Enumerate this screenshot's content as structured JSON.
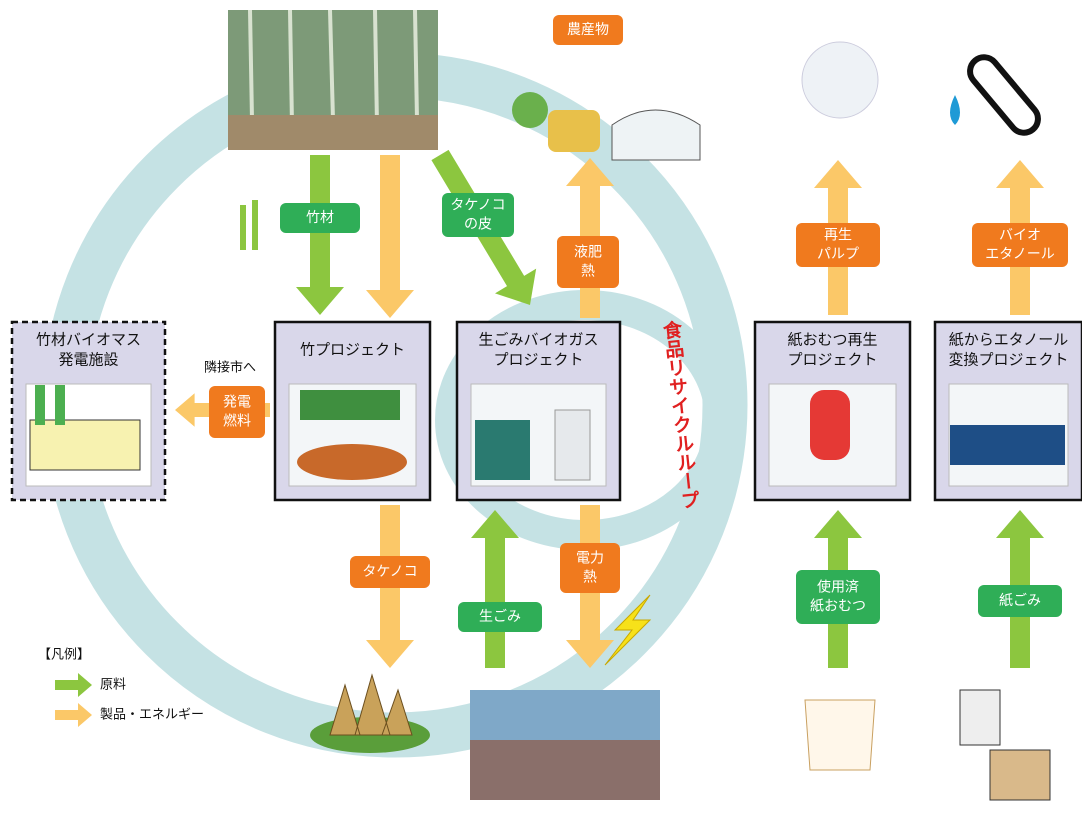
{
  "labels": {
    "agri": "農産物",
    "bamboo_material": "竹材",
    "bamboo_skin": [
      "タケノコ",
      "の皮"
    ],
    "fertilizer_heat": [
      "液肥",
      "熱"
    ],
    "recycled_pulp": [
      "再生",
      "パルプ"
    ],
    "bioethanol": [
      "バイオ",
      "エタノール"
    ],
    "neighbor": "隣接市へ",
    "power_fuel": [
      "発電",
      "燃料"
    ],
    "takenoko": "タケノコ",
    "power_heat": [
      "電力",
      "熱"
    ],
    "food_waste": "生ごみ",
    "used_diapers": [
      "使用済",
      "紙おむつ"
    ],
    "paper_waste": "紙ごみ",
    "loop": "食品リサイクルループ"
  },
  "boxes": [
    {
      "title": [
        "竹材バイオマス",
        "発電施設"
      ]
    },
    {
      "title": [
        "竹プロジェクト"
      ]
    },
    {
      "title": [
        "生ごみバイオガス",
        "プロジェクト"
      ]
    },
    {
      "title": [
        "紙おむつ再生",
        "プロジェクト"
      ]
    },
    {
      "title": [
        "紙からエタノール",
        "変換プロジェクト"
      ]
    }
  ],
  "legend": {
    "title": "【凡例】",
    "items": [
      "原料",
      "製品・エネルギー"
    ]
  }
}
